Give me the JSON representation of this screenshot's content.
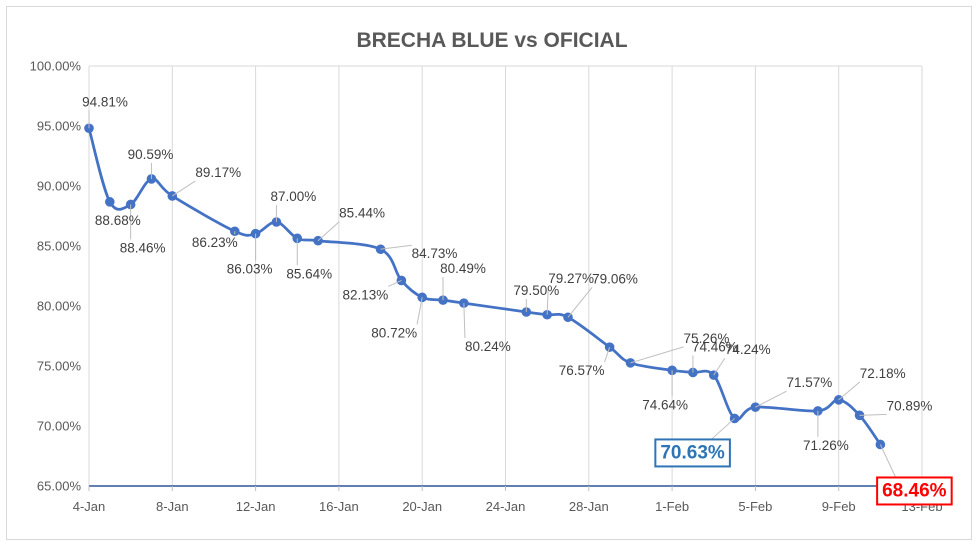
{
  "chart_data": {
    "type": "line",
    "title": "BRECHA BLUE vs OFICIAL",
    "xlabel": "",
    "ylabel": "",
    "x_ticks": [
      {
        "date": "2021-01-04",
        "label": "4-Jan"
      },
      {
        "date": "2021-01-08",
        "label": "8-Jan"
      },
      {
        "date": "2021-01-12",
        "label": "12-Jan"
      },
      {
        "date": "2021-01-16",
        "label": "16-Jan"
      },
      {
        "date": "2021-01-20",
        "label": "20-Jan"
      },
      {
        "date": "2021-01-24",
        "label": "24-Jan"
      },
      {
        "date": "2021-01-28",
        "label": "28-Jan"
      },
      {
        "date": "2021-02-01",
        "label": "1-Feb"
      },
      {
        "date": "2021-02-05",
        "label": "5-Feb"
      },
      {
        "date": "2021-02-09",
        "label": "9-Feb"
      },
      {
        "date": "2021-02-13",
        "label": "13-Feb"
      }
    ],
    "x_range": [
      "2021-01-04",
      "2021-02-13"
    ],
    "y_ticks": [
      {
        "value": 65,
        "label": "65.00%"
      },
      {
        "value": 70,
        "label": "70.00%"
      },
      {
        "value": 75,
        "label": "75.00%"
      },
      {
        "value": 80,
        "label": "80.00%"
      },
      {
        "value": 85,
        "label": "85.00%"
      },
      {
        "value": 90,
        "label": "90.00%"
      },
      {
        "value": 95,
        "label": "95.00%"
      },
      {
        "value": 100,
        "label": "100.00%"
      }
    ],
    "ylim": [
      65,
      100
    ],
    "grid": "vertical",
    "legend": "none",
    "series": [
      {
        "color": "#4472c4",
        "points": [
          {
            "x": "2021-01-04",
            "y": 94.81,
            "label": "94.81%"
          },
          {
            "x": "2021-01-05",
            "y": 88.68,
            "label": "88.68%"
          },
          {
            "x": "2021-01-06",
            "y": 88.46,
            "label": "88.46%"
          },
          {
            "x": "2021-01-07",
            "y": 90.59,
            "label": "90.59%"
          },
          {
            "x": "2021-01-08",
            "y": 89.17,
            "label": "89.17%"
          },
          {
            "x": "2021-01-11",
            "y": 86.23,
            "label": "86.23%"
          },
          {
            "x": "2021-01-12",
            "y": 86.03,
            "label": "86.03%"
          },
          {
            "x": "2021-01-13",
            "y": 87.0,
            "label": "87.00%"
          },
          {
            "x": "2021-01-14",
            "y": 85.64,
            "label": "85.64%"
          },
          {
            "x": "2021-01-15",
            "y": 85.44,
            "label": "85.44%"
          },
          {
            "x": "2021-01-18",
            "y": 84.73,
            "label": "84.73%"
          },
          {
            "x": "2021-01-19",
            "y": 82.13,
            "label": "82.13%"
          },
          {
            "x": "2021-01-20",
            "y": 80.72,
            "label": "80.72%"
          },
          {
            "x": "2021-01-21",
            "y": 80.49,
            "label": "80.49%"
          },
          {
            "x": "2021-01-22",
            "y": 80.24,
            "label": "80.24%"
          },
          {
            "x": "2021-01-25",
            "y": 79.5,
            "label": "79.50%"
          },
          {
            "x": "2021-01-26",
            "y": 79.27,
            "label": "79.27%"
          },
          {
            "x": "2021-01-27",
            "y": 79.06,
            "label": "79.06%"
          },
          {
            "x": "2021-01-29",
            "y": 76.57,
            "label": "76.57%"
          },
          {
            "x": "2021-01-30",
            "y": 75.26,
            "label": "75.26%"
          },
          {
            "x": "2021-02-01",
            "y": 74.64,
            "label": "74.64%"
          },
          {
            "x": "2021-02-02",
            "y": 74.46,
            "label": "74.46%"
          },
          {
            "x": "2021-02-03",
            "y": 74.24,
            "label": "74.24%"
          },
          {
            "x": "2021-02-04",
            "y": 70.63,
            "label": "70.63%",
            "highlight": "#2e75b6"
          },
          {
            "x": "2021-02-05",
            "y": 71.57,
            "label": "71.57%"
          },
          {
            "x": "2021-02-08",
            "y": 71.26,
            "label": "71.26%"
          },
          {
            "x": "2021-02-09",
            "y": 72.18,
            "label": "72.18%"
          },
          {
            "x": "2021-02-10",
            "y": 70.89,
            "label": "70.89%"
          },
          {
            "x": "2021-02-11",
            "y": 68.46,
            "label": "68.46%",
            "highlight": "#ff0000"
          }
        ]
      }
    ]
  }
}
